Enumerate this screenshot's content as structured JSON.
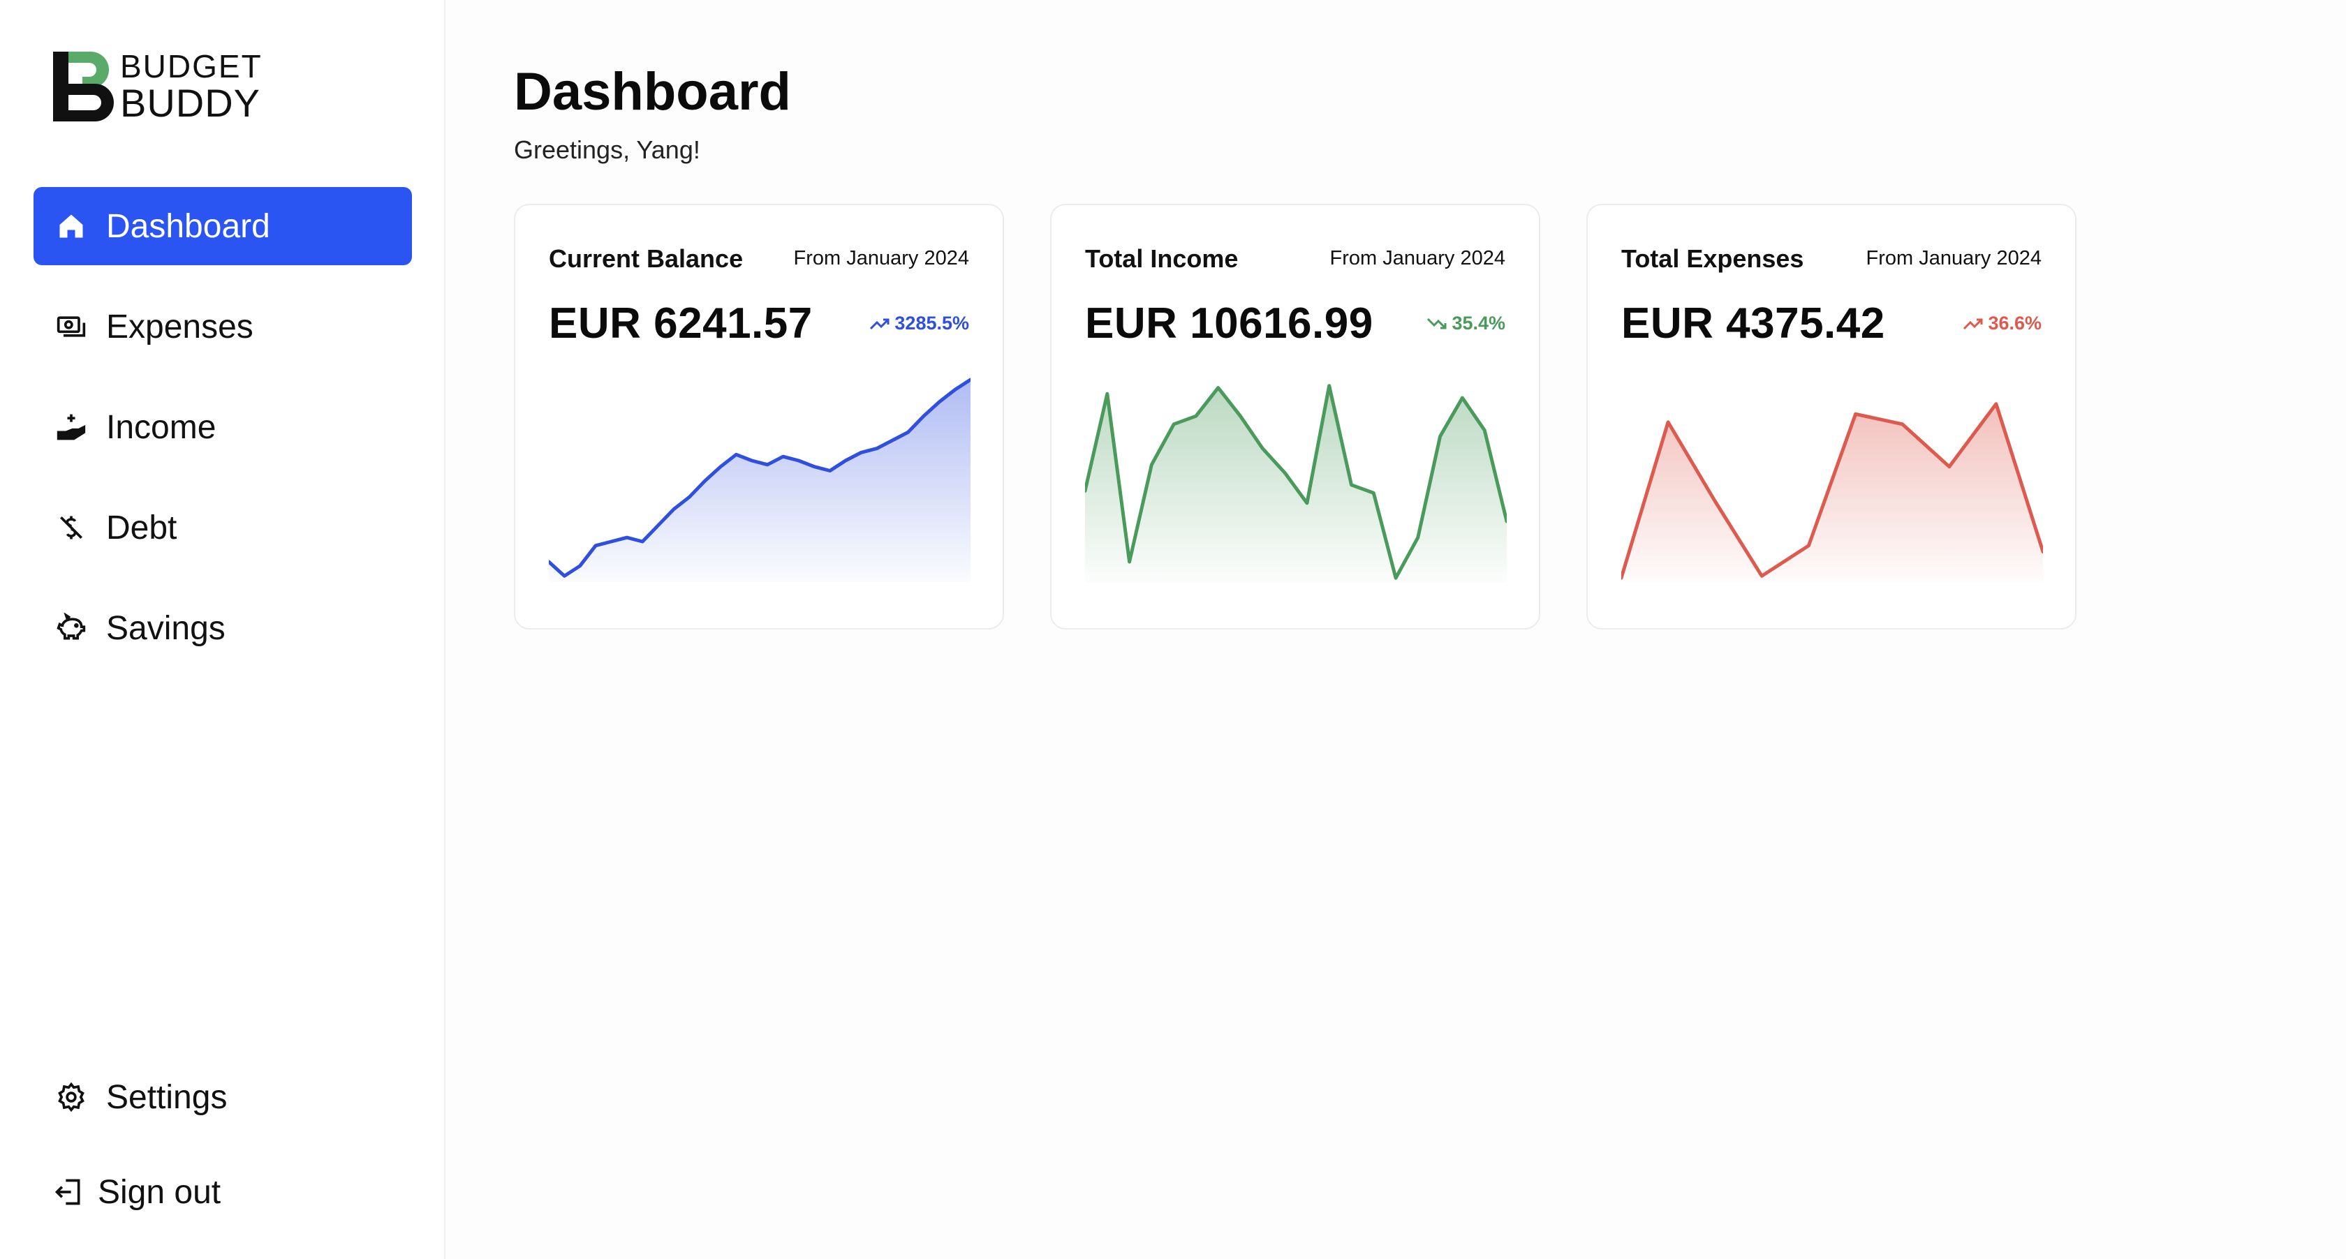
{
  "app": {
    "logo_line1": "BUDGET",
    "logo_line2": "BUDDY"
  },
  "sidebar": {
    "items": [
      {
        "label": "Dashboard",
        "icon": "home-icon",
        "active": true
      },
      {
        "label": "Expenses",
        "icon": "cash-icon"
      },
      {
        "label": "Income",
        "icon": "hand-coins-icon"
      },
      {
        "label": "Debt",
        "icon": "dollar-off-icon"
      },
      {
        "label": "Savings",
        "icon": "piggy-bank-icon"
      }
    ],
    "bottom": [
      {
        "label": "Settings",
        "icon": "gear-icon"
      },
      {
        "label": "Sign out",
        "icon": "sign-out-icon"
      }
    ]
  },
  "main": {
    "title": "Dashboard",
    "greeting": "Greetings, Yang!"
  },
  "cards": [
    {
      "title": "Current Balance",
      "period": "From January 2024",
      "amount": "EUR 6241.57",
      "change": "3285.5%",
      "trend": "up",
      "color": "#2f4fe0"
    },
    {
      "title": "Total Income",
      "period": "From January 2024",
      "amount": "EUR 10616.99",
      "change": "35.4%",
      "trend": "down",
      "color": "#4a9a5c"
    },
    {
      "title": "Total Expenses",
      "period": "From January 2024",
      "amount": "EUR 4375.42",
      "change": "36.6%",
      "trend": "up",
      "color": "#dc5a4e"
    }
  ],
  "chart_data": [
    {
      "type": "area",
      "series": [
        {
          "values": [
            0.1,
            0.03,
            0.08,
            0.18,
            0.2,
            0.22,
            0.2,
            0.28,
            0.36,
            0.42,
            0.5,
            0.57,
            0.63,
            0.6,
            0.58,
            0.62,
            0.6,
            0.57,
            0.55,
            0.6,
            0.64,
            0.66,
            0.7,
            0.74,
            0.82,
            0.89,
            0.95,
            1.0
          ]
        }
      ],
      "ylim": [
        0,
        1
      ]
    },
    {
      "type": "area",
      "series": [
        {
          "values": [
            0.45,
            0.93,
            0.1,
            0.58,
            0.78,
            0.82,
            0.96,
            0.82,
            0.66,
            0.54,
            0.39,
            0.97,
            0.48,
            0.44,
            0.02,
            0.22,
            0.72,
            0.91,
            0.75,
            0.3
          ]
        }
      ],
      "ylim": [
        0,
        1
      ]
    },
    {
      "type": "area",
      "series": [
        {
          "values": [
            0.02,
            0.79,
            0.4,
            0.03,
            0.18,
            0.83,
            0.78,
            0.57,
            0.88,
            0.15
          ]
        }
      ],
      "ylim": [
        0,
        1
      ]
    }
  ]
}
